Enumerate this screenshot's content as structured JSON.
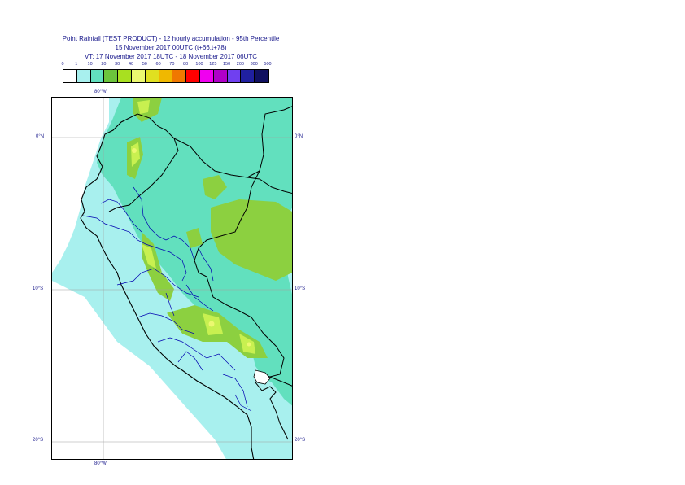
{
  "header": {
    "line1": "Point Rainfall (TEST PRODUCT) - 12 hourly accumulation - 95th Percentile",
    "line2": "15 November 2017 00UTC (t+66,t+78)",
    "line3": "VT: 17 November 2017 18UTC - 18 November 2017 06UTC"
  },
  "legend": {
    "thresholds": [
      "0",
      "1",
      "10",
      "20",
      "30",
      "40",
      "50",
      "60",
      "70",
      "80",
      "100",
      "125",
      "150",
      "200",
      "300",
      "500"
    ],
    "colors": [
      "#ffffff",
      "#a8f0ee",
      "#62e0be",
      "#6cc43c",
      "#a8e020",
      "#ecf870",
      "#e0e020",
      "#f0b800",
      "#f07800",
      "#ff0000",
      "#f000f0",
      "#b000c8",
      "#7040f0",
      "#2020a0",
      "#101060"
    ]
  },
  "map": {
    "lat_labels": {
      "north": "0°N",
      "mid": "10°S",
      "south": "20°S"
    },
    "lon_labels": {
      "top": "80°W",
      "bottom": "80°W"
    },
    "colors": {
      "sea": "#a8f0ee",
      "land_light": "#62e0be",
      "land_medium": "#8cd040",
      "land_high": "#c8f050",
      "land_peak": "#ecf870",
      "coast": "#000000",
      "borders": "#0000b0",
      "grid": "#a0a0a0"
    }
  }
}
